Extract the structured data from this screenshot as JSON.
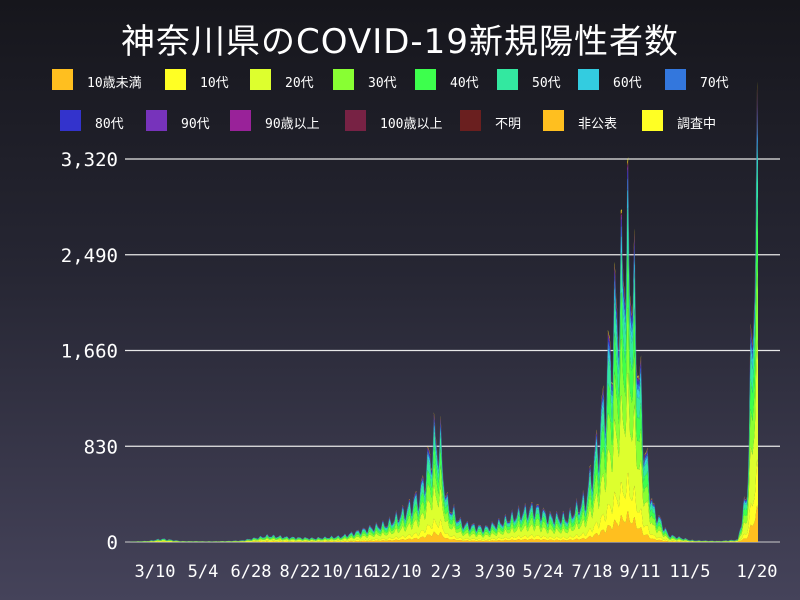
{
  "chart_data": {
    "type": "area",
    "stacked": true,
    "title": "神奈川県のCOVID-19新規陽性者数",
    "xlabel": "",
    "ylabel": "",
    "ylim": [
      0,
      3320
    ],
    "yticks": [
      "0",
      "830",
      "1,660",
      "2,490",
      "3,320"
    ],
    "xticks": [
      "3/10",
      "5/4",
      "6/28",
      "8/22",
      "10/16",
      "12/10",
      "2/3",
      "3/30",
      "5/24",
      "7/18",
      "9/11",
      "11/5",
      "1/20"
    ],
    "grid": "horizontal",
    "legend_position": "top",
    "series": [
      {
        "name": "10歳未満",
        "color": "#ffbf1f",
        "share": 0.08
      },
      {
        "name": "10代",
        "color": "#ffff24",
        "share": 0.1
      },
      {
        "name": "20代",
        "color": "#ddff2e",
        "share": 0.26
      },
      {
        "name": "30代",
        "color": "#88ff33",
        "share": 0.17
      },
      {
        "name": "40代",
        "color": "#3dff4d",
        "share": 0.14
      },
      {
        "name": "50代",
        "color": "#33e8a0",
        "share": 0.12
      },
      {
        "name": "60代",
        "color": "#33cce0",
        "share": 0.05
      },
      {
        "name": "70代",
        "color": "#3377dd",
        "share": 0.03
      },
      {
        "name": "80代",
        "color": "#3333cc",
        "share": 0.02
      },
      {
        "name": "90代",
        "color": "#7733bb",
        "share": 0.01
      },
      {
        "name": "90歳以上",
        "color": "#992299",
        "share": 0.005
      },
      {
        "name": "100歳以上",
        "color": "#772244",
        "share": 0.002
      },
      {
        "name": "不明",
        "color": "#6a1f1f",
        "share": 0.003
      },
      {
        "name": "非公表",
        "color": "#ffbf1f",
        "share": 0.005
      },
      {
        "name": "調査中",
        "color": "#ffff24",
        "share": 0.005
      }
    ],
    "total_anchors": [
      {
        "day": 0,
        "value": 2
      },
      {
        "day": 20,
        "value": 10
      },
      {
        "day": 35,
        "value": 28
      },
      {
        "day": 55,
        "value": 8
      },
      {
        "day": 90,
        "value": 5
      },
      {
        "day": 120,
        "value": 12
      },
      {
        "day": 150,
        "value": 55
      },
      {
        "day": 175,
        "value": 40
      },
      {
        "day": 200,
        "value": 32
      },
      {
        "day": 230,
        "value": 50
      },
      {
        "day": 260,
        "value": 120
      },
      {
        "day": 280,
        "value": 160
      },
      {
        "day": 300,
        "value": 280
      },
      {
        "day": 315,
        "value": 420
      },
      {
        "day": 322,
        "value": 650
      },
      {
        "day": 330,
        "value": 900
      },
      {
        "day": 337,
        "value": 880
      },
      {
        "day": 344,
        "value": 350
      },
      {
        "day": 360,
        "value": 160
      },
      {
        "day": 385,
        "value": 120
      },
      {
        "day": 405,
        "value": 180
      },
      {
        "day": 425,
        "value": 260
      },
      {
        "day": 440,
        "value": 300
      },
      {
        "day": 455,
        "value": 220
      },
      {
        "day": 475,
        "value": 210
      },
      {
        "day": 495,
        "value": 380
      },
      {
        "day": 510,
        "value": 950
      },
      {
        "day": 525,
        "value": 1900
      },
      {
        "day": 533,
        "value": 2300
      },
      {
        "day": 540,
        "value": 2700
      },
      {
        "day": 548,
        "value": 2100
      },
      {
        "day": 558,
        "value": 900
      },
      {
        "day": 568,
        "value": 300
      },
      {
        "day": 585,
        "value": 60
      },
      {
        "day": 610,
        "value": 15
      },
      {
        "day": 640,
        "value": 8
      },
      {
        "day": 660,
        "value": 20
      },
      {
        "day": 670,
        "value": 450
      },
      {
        "day": 676,
        "value": 2000
      },
      {
        "day": 682,
        "value": 3300
      }
    ]
  }
}
